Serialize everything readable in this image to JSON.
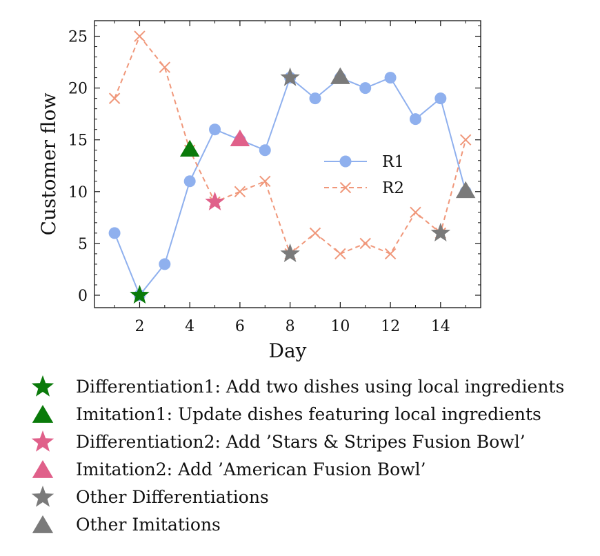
{
  "chart_data": {
    "type": "line",
    "xlabel": "Day",
    "ylabel": "Customer flow",
    "xlim": [
      0.2,
      15.6
    ],
    "ylim": [
      -1.2,
      26.5
    ],
    "xticks": [
      2,
      4,
      6,
      8,
      10,
      12,
      14
    ],
    "yticks": [
      0,
      5,
      10,
      15,
      20,
      25
    ],
    "x": [
      1,
      2,
      3,
      4,
      5,
      6,
      7,
      8,
      9,
      10,
      11,
      12,
      13,
      14,
      15
    ],
    "series": [
      {
        "name": "R1",
        "color": "#8fb0ee",
        "style": "solid",
        "marker": "circle",
        "values": [
          6,
          0,
          3,
          11,
          16,
          15,
          14,
          21,
          19,
          21,
          20,
          21,
          17,
          19,
          10
        ]
      },
      {
        "name": "R2",
        "color": "#f0977a",
        "style": "dashed",
        "marker": "x",
        "values": [
          19,
          25,
          22,
          14,
          9,
          10,
          11,
          4,
          6,
          4,
          5,
          4,
          8,
          6,
          15
        ]
      }
    ],
    "events": [
      {
        "x": 2,
        "y": 0,
        "shape": "star",
        "color": "#0a7a0a"
      },
      {
        "x": 4,
        "y": 14,
        "shape": "triangle",
        "color": "#0a7a0a"
      },
      {
        "x": 5,
        "y": 9,
        "shape": "star",
        "color": "#e0608a"
      },
      {
        "x": 6,
        "y": 15,
        "shape": "triangle",
        "color": "#e0608a"
      },
      {
        "x": 8,
        "y": 21,
        "shape": "star",
        "color": "#7a7a7a"
      },
      {
        "x": 8,
        "y": 4,
        "shape": "star",
        "color": "#7a7a7a"
      },
      {
        "x": 10,
        "y": 21,
        "shape": "triangle",
        "color": "#7a7a7a"
      },
      {
        "x": 14,
        "y": 6,
        "shape": "star",
        "color": "#7a7a7a"
      },
      {
        "x": 15,
        "y": 10,
        "shape": "triangle",
        "color": "#7a7a7a"
      }
    ],
    "legend_position": "center-right"
  },
  "event_legend": [
    {
      "shape": "star",
      "color": "#0a7a0a",
      "label": "Differentiation1: Add two dishes using local ingredients"
    },
    {
      "shape": "triangle",
      "color": "#0a7a0a",
      "label": "Imitation1: Update dishes featuring local ingredients"
    },
    {
      "shape": "star",
      "color": "#e0608a",
      "label": "Differentiation2: Add ’Stars & Stripes Fusion Bowl’"
    },
    {
      "shape": "triangle",
      "color": "#e0608a",
      "label": "Imitation2: Add ’American Fusion Bowl’"
    },
    {
      "shape": "star",
      "color": "#7a7a7a",
      "label": "Other Differentiations"
    },
    {
      "shape": "triangle",
      "color": "#7a7a7a",
      "label": "Other Imitations"
    }
  ]
}
